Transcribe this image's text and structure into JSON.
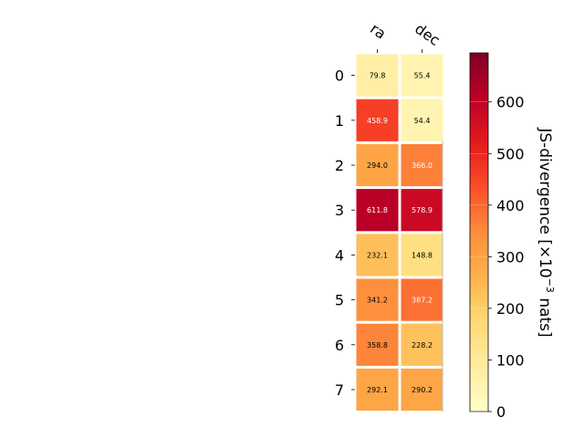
{
  "chart_data": {
    "type": "heatmap",
    "columns": [
      "ra",
      "dec"
    ],
    "rows": [
      "0",
      "1",
      "2",
      "3",
      "4",
      "5",
      "6",
      "7"
    ],
    "values": [
      [
        79.8,
        55.4
      ],
      [
        458.9,
        54.4
      ],
      [
        294.0,
        366.0
      ],
      [
        611.8,
        578.9
      ],
      [
        232.1,
        148.8
      ],
      [
        341.2,
        387.2
      ],
      [
        358.8,
        228.2
      ],
      [
        292.1,
        290.2
      ]
    ],
    "value_labels": [
      [
        "79.8",
        "55.4"
      ],
      [
        "458.9",
        "54.4"
      ],
      [
        "294.0",
        "366.0"
      ],
      [
        "611.8",
        "578.9"
      ],
      [
        "232.1",
        "148.8"
      ],
      [
        "341.2",
        "387.2"
      ],
      [
        "358.8",
        "228.2"
      ],
      [
        "292.1",
        "290.2"
      ]
    ],
    "colormap": "YlOrRd",
    "colorbar": {
      "label_main": "JS-divergence [×10",
      "label_exp": "−3",
      "label_unit": " nats]",
      "range": [
        0,
        695
      ],
      "ticks": [
        0,
        100,
        200,
        300,
        400,
        500,
        600
      ],
      "tick_labels": [
        "0",
        "100",
        "200",
        "300",
        "400",
        "500",
        "600"
      ]
    }
  }
}
